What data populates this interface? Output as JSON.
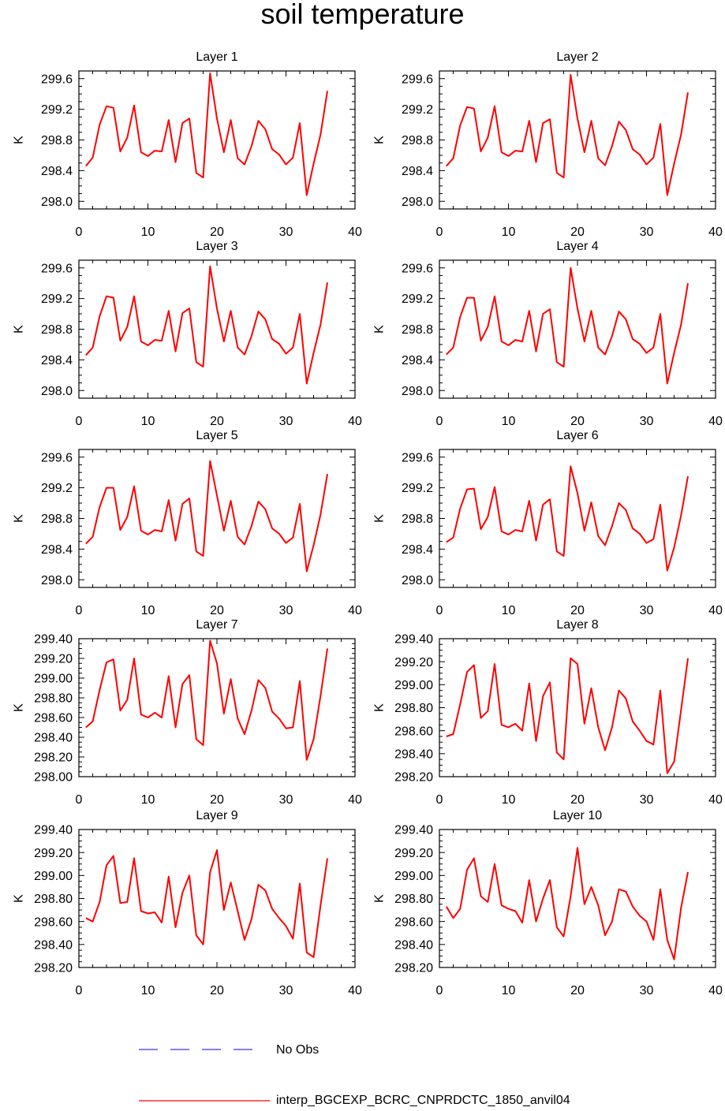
{
  "figure": {
    "title": "soil temperature"
  },
  "legend": {
    "items": [
      {
        "label": "No Obs",
        "color": "#3333ff",
        "style": "dashed"
      },
      {
        "label": "interp_BGCEXP_BCRC_CNPRDCTC_1850_anvil04",
        "color": "#ff0000",
        "style": "solid"
      }
    ]
  },
  "chart_data": [
    {
      "type": "line",
      "title": "Layer 1",
      "ylabel": "K",
      "xlim": [
        0,
        40
      ],
      "ylim": [
        297.9,
        299.7
      ],
      "xticks": [
        "0",
        "10",
        "20",
        "30",
        "40"
      ],
      "yticks": [
        "298.0",
        "298.4",
        "298.8",
        "299.2",
        "299.6"
      ],
      "series": [
        {
          "color": "#ff0000",
          "x": [
            1,
            2,
            3,
            4,
            5,
            6,
            7,
            8,
            9,
            10,
            11,
            12,
            13,
            14,
            15,
            16,
            17,
            18,
            19,
            20,
            21,
            22,
            23,
            24,
            25,
            26,
            27,
            28,
            29,
            30,
            31,
            32,
            33,
            34,
            35,
            36
          ],
          "y": [
            298.46,
            298.57,
            299.0,
            299.24,
            299.22,
            298.65,
            298.83,
            299.25,
            298.64,
            298.59,
            298.66,
            298.65,
            299.06,
            298.51,
            299.02,
            299.08,
            298.37,
            298.31,
            299.67,
            299.08,
            298.64,
            299.06,
            298.56,
            298.48,
            298.72,
            299.05,
            298.94,
            298.68,
            298.61,
            298.48,
            298.57,
            299.02,
            298.08,
            298.49,
            298.87,
            299.44
          ]
        }
      ]
    },
    {
      "type": "line",
      "title": "Layer 2",
      "ylabel": "K",
      "xlim": [
        0,
        40
      ],
      "ylim": [
        297.9,
        299.7
      ],
      "xticks": [
        "0",
        "10",
        "20",
        "30",
        "40"
      ],
      "yticks": [
        "298.0",
        "298.4",
        "298.8",
        "299.2",
        "299.6"
      ],
      "series": [
        {
          "color": "#ff0000",
          "x": [
            1,
            2,
            3,
            4,
            5,
            6,
            7,
            8,
            9,
            10,
            11,
            12,
            13,
            14,
            15,
            16,
            17,
            18,
            19,
            20,
            21,
            22,
            23,
            24,
            25,
            26,
            27,
            28,
            29,
            30,
            31,
            32,
            33,
            34,
            35,
            36
          ],
          "y": [
            298.46,
            298.56,
            298.99,
            299.23,
            299.21,
            298.65,
            298.83,
            299.24,
            298.64,
            298.59,
            298.66,
            298.65,
            299.05,
            298.51,
            299.02,
            299.07,
            298.37,
            298.31,
            299.65,
            299.08,
            298.64,
            299.05,
            298.56,
            298.47,
            298.72,
            299.04,
            298.93,
            298.68,
            298.61,
            298.48,
            298.57,
            299.01,
            298.08,
            298.49,
            298.87,
            299.42
          ]
        }
      ]
    },
    {
      "type": "line",
      "title": "Layer 3",
      "ylabel": "K",
      "xlim": [
        0,
        40
      ],
      "ylim": [
        297.9,
        299.7
      ],
      "xticks": [
        "0",
        "10",
        "20",
        "30",
        "40"
      ],
      "yticks": [
        "298.0",
        "298.4",
        "298.8",
        "299.2",
        "299.6"
      ],
      "series": [
        {
          "color": "#ff0000",
          "x": [
            1,
            2,
            3,
            4,
            5,
            6,
            7,
            8,
            9,
            10,
            11,
            12,
            13,
            14,
            15,
            16,
            17,
            18,
            19,
            20,
            21,
            22,
            23,
            24,
            25,
            26,
            27,
            28,
            29,
            30,
            31,
            32,
            33,
            34,
            35,
            36
          ],
          "y": [
            298.46,
            298.56,
            298.97,
            299.23,
            299.21,
            298.65,
            298.83,
            299.23,
            298.64,
            298.59,
            298.66,
            298.65,
            299.04,
            298.51,
            299.01,
            299.07,
            298.37,
            298.31,
            299.62,
            299.07,
            298.64,
            299.04,
            298.56,
            298.47,
            298.71,
            299.03,
            298.93,
            298.67,
            298.61,
            298.48,
            298.56,
            299.0,
            298.09,
            298.49,
            298.86,
            299.41
          ]
        }
      ]
    },
    {
      "type": "line",
      "title": "Layer 4",
      "ylabel": "K",
      "xlim": [
        0,
        40
      ],
      "ylim": [
        297.9,
        299.7
      ],
      "xticks": [
        "0",
        "10",
        "20",
        "30",
        "40"
      ],
      "yticks": [
        "298.0",
        "298.4",
        "298.8",
        "299.2",
        "299.6"
      ],
      "series": [
        {
          "color": "#ff0000",
          "x": [
            1,
            2,
            3,
            4,
            5,
            6,
            7,
            8,
            9,
            10,
            11,
            12,
            13,
            14,
            15,
            16,
            17,
            18,
            19,
            20,
            21,
            22,
            23,
            24,
            25,
            26,
            27,
            28,
            29,
            30,
            31,
            32,
            33,
            34,
            35,
            36
          ],
          "y": [
            298.47,
            298.56,
            298.96,
            299.21,
            299.21,
            298.65,
            298.83,
            299.23,
            298.64,
            298.59,
            298.66,
            298.64,
            299.04,
            298.51,
            299.0,
            299.06,
            298.37,
            298.31,
            299.6,
            299.07,
            298.64,
            299.04,
            298.56,
            298.47,
            298.71,
            299.03,
            298.93,
            298.67,
            298.61,
            298.49,
            298.56,
            299.0,
            298.09,
            298.49,
            298.86,
            299.4
          ]
        }
      ]
    },
    {
      "type": "line",
      "title": "Layer 5",
      "ylabel": "K",
      "xlim": [
        0,
        40
      ],
      "ylim": [
        297.9,
        299.7
      ],
      "xticks": [
        "0",
        "10",
        "20",
        "30",
        "40"
      ],
      "yticks": [
        "298.0",
        "298.4",
        "298.8",
        "299.2",
        "299.6"
      ],
      "series": [
        {
          "color": "#ff0000",
          "x": [
            1,
            2,
            3,
            4,
            5,
            6,
            7,
            8,
            9,
            10,
            11,
            12,
            13,
            14,
            15,
            16,
            17,
            18,
            19,
            20,
            21,
            22,
            23,
            24,
            25,
            26,
            27,
            28,
            29,
            30,
            31,
            32,
            33,
            34,
            35,
            36
          ],
          "y": [
            298.47,
            298.56,
            298.95,
            299.2,
            299.2,
            298.65,
            298.82,
            299.22,
            298.64,
            298.59,
            298.65,
            298.63,
            299.04,
            298.51,
            298.99,
            299.06,
            298.37,
            298.31,
            299.55,
            299.1,
            298.64,
            299.03,
            298.56,
            298.46,
            298.7,
            299.02,
            298.92,
            298.67,
            298.6,
            298.48,
            298.55,
            298.99,
            298.11,
            298.45,
            298.85,
            299.38
          ]
        }
      ]
    },
    {
      "type": "line",
      "title": "Layer 6",
      "ylabel": "K",
      "xlim": [
        0,
        40
      ],
      "ylim": [
        297.9,
        299.7
      ],
      "xticks": [
        "0",
        "10",
        "20",
        "30",
        "40"
      ],
      "yticks": [
        "298.0",
        "298.4",
        "298.8",
        "299.2",
        "299.6"
      ],
      "series": [
        {
          "color": "#ff0000",
          "x": [
            1,
            2,
            3,
            4,
            5,
            6,
            7,
            8,
            9,
            10,
            11,
            12,
            13,
            14,
            15,
            16,
            17,
            18,
            19,
            20,
            21,
            22,
            23,
            24,
            25,
            26,
            27,
            28,
            29,
            30,
            31,
            32,
            33,
            34,
            35,
            36
          ],
          "y": [
            298.49,
            298.55,
            298.93,
            299.18,
            299.19,
            298.66,
            298.82,
            299.21,
            298.63,
            298.59,
            298.65,
            298.63,
            299.03,
            298.51,
            298.98,
            299.05,
            298.37,
            298.31,
            299.48,
            299.13,
            298.64,
            299.01,
            298.57,
            298.45,
            298.7,
            299.0,
            298.91,
            298.67,
            298.6,
            298.48,
            298.53,
            298.98,
            298.12,
            298.42,
            298.84,
            299.35
          ]
        }
      ]
    },
    {
      "type": "line",
      "title": "Layer 7",
      "ylabel": "K",
      "xlim": [
        0,
        40
      ],
      "ylim": [
        298.0,
        299.4
      ],
      "xticks": [
        "0",
        "10",
        "20",
        "30",
        "40"
      ],
      "yticks": [
        "298.00",
        "298.20",
        "298.40",
        "298.60",
        "298.80",
        "299.00",
        "299.20",
        "299.40"
      ],
      "series": [
        {
          "color": "#ff0000",
          "x": [
            1,
            2,
            3,
            4,
            5,
            6,
            7,
            8,
            9,
            10,
            11,
            12,
            13,
            14,
            15,
            16,
            17,
            18,
            19,
            20,
            21,
            22,
            23,
            24,
            25,
            26,
            27,
            28,
            29,
            30,
            31,
            32,
            33,
            34,
            35,
            36
          ],
          "y": [
            298.5,
            298.56,
            298.88,
            299.16,
            299.19,
            298.67,
            298.78,
            299.2,
            298.63,
            298.6,
            298.65,
            298.6,
            299.02,
            298.5,
            298.94,
            299.03,
            298.38,
            298.32,
            299.38,
            299.15,
            298.64,
            298.99,
            298.59,
            298.43,
            298.67,
            298.98,
            298.9,
            298.66,
            298.59,
            298.49,
            298.5,
            298.97,
            298.17,
            298.38,
            298.82,
            299.3
          ]
        }
      ]
    },
    {
      "type": "line",
      "title": "Layer 8",
      "ylabel": "K",
      "xlim": [
        0,
        40
      ],
      "ylim": [
        298.2,
        299.4
      ],
      "xticks": [
        "0",
        "10",
        "20",
        "30",
        "40"
      ],
      "yticks": [
        "298.20",
        "298.40",
        "298.60",
        "298.80",
        "299.00",
        "299.20",
        "299.40"
      ],
      "series": [
        {
          "color": "#ff0000",
          "x": [
            1,
            2,
            3,
            4,
            5,
            6,
            7,
            8,
            9,
            10,
            11,
            12,
            13,
            14,
            15,
            16,
            17,
            18,
            19,
            20,
            21,
            22,
            23,
            24,
            25,
            26,
            27,
            28,
            29,
            30,
            31,
            32,
            33,
            34,
            35,
            36
          ],
          "y": [
            298.55,
            298.57,
            298.83,
            299.11,
            299.17,
            298.71,
            298.77,
            299.18,
            298.65,
            298.63,
            298.66,
            298.6,
            299.01,
            298.51,
            298.9,
            299.02,
            298.41,
            298.35,
            299.23,
            299.18,
            298.66,
            298.97,
            298.63,
            298.43,
            298.63,
            298.95,
            298.88,
            298.68,
            298.6,
            298.51,
            298.48,
            298.95,
            298.23,
            298.33,
            298.78,
            299.23
          ]
        }
      ]
    },
    {
      "type": "line",
      "title": "Layer 9",
      "ylabel": "K",
      "xlim": [
        0,
        40
      ],
      "ylim": [
        298.2,
        299.4
      ],
      "xticks": [
        "0",
        "10",
        "20",
        "30",
        "40"
      ],
      "yticks": [
        "298.20",
        "298.40",
        "298.60",
        "298.80",
        "299.00",
        "299.20",
        "299.40"
      ],
      "series": [
        {
          "color": "#ff0000",
          "x": [
            1,
            2,
            3,
            4,
            5,
            6,
            7,
            8,
            9,
            10,
            11,
            12,
            13,
            14,
            15,
            16,
            17,
            18,
            19,
            20,
            21,
            22,
            23,
            24,
            25,
            26,
            27,
            28,
            29,
            30,
            31,
            32,
            33,
            34,
            35,
            36
          ],
          "y": [
            298.63,
            298.6,
            298.77,
            299.09,
            299.17,
            298.76,
            298.77,
            299.15,
            298.69,
            298.67,
            298.68,
            298.59,
            298.99,
            298.55,
            298.85,
            299.0,
            298.48,
            298.4,
            299.03,
            299.22,
            298.7,
            298.94,
            298.69,
            298.44,
            298.62,
            298.92,
            298.87,
            298.71,
            298.63,
            298.56,
            298.45,
            298.93,
            298.33,
            298.29,
            298.74,
            299.15
          ]
        }
      ]
    },
    {
      "type": "line",
      "title": "Layer 10",
      "ylabel": "K",
      "xlim": [
        0,
        40
      ],
      "ylim": [
        298.2,
        299.4
      ],
      "xticks": [
        "0",
        "10",
        "20",
        "30",
        "40"
      ],
      "yticks": [
        "298.20",
        "298.40",
        "298.60",
        "298.80",
        "299.00",
        "299.20",
        "299.40"
      ],
      "series": [
        {
          "color": "#ff0000",
          "x": [
            1,
            2,
            3,
            4,
            5,
            6,
            7,
            8,
            9,
            10,
            11,
            12,
            13,
            14,
            15,
            16,
            17,
            18,
            19,
            20,
            21,
            22,
            23,
            24,
            25,
            26,
            27,
            28,
            29,
            30,
            31,
            32,
            33,
            34,
            35,
            36
          ],
          "y": [
            298.73,
            298.63,
            298.71,
            299.05,
            299.15,
            298.82,
            298.77,
            299.1,
            298.74,
            298.71,
            298.69,
            298.59,
            298.96,
            298.6,
            298.8,
            298.96,
            298.55,
            298.47,
            298.82,
            299.24,
            298.75,
            298.9,
            298.74,
            298.48,
            298.6,
            298.88,
            298.86,
            298.73,
            298.65,
            298.6,
            298.44,
            298.88,
            298.44,
            298.27,
            298.72,
            299.03
          ]
        }
      ]
    }
  ]
}
